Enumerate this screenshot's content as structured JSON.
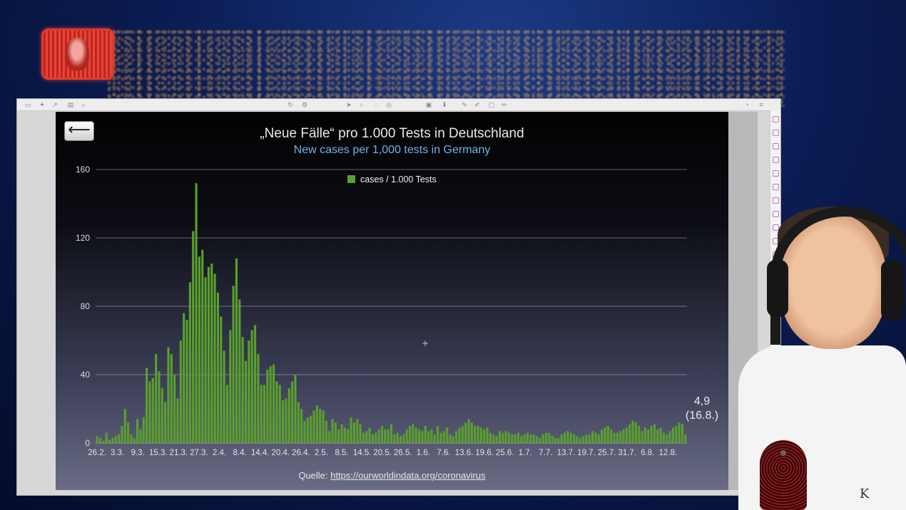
{
  "chart_data": {
    "type": "bar",
    "title": "„Neue Fälle“ pro 1.000 Tests in Deutschland",
    "subtitle": "New cases per 1,000 tests in Germany",
    "legend": [
      "cases / 1.000 Tests"
    ],
    "legend_position": "top-center",
    "xlabel": "",
    "ylabel": "",
    "ylim": [
      0,
      160
    ],
    "yticks": [
      0,
      40,
      80,
      120,
      160
    ],
    "grid": true,
    "color": "#5aa02c",
    "xtick_labels": [
      "26.2.",
      "3.3.",
      "9.3.",
      "15.3.",
      "21.3.",
      "27.3.",
      "2.4.",
      "8.4.",
      "14.4.",
      "20.4.",
      "26.4.",
      "2.5.",
      "8.5.",
      "14.5.",
      "20.5.",
      "26.5.",
      "1.6.",
      "7.6.",
      "13.6.",
      "19.6.",
      "25.6.",
      "1.7.",
      "7.7.",
      "13.7.",
      "19.7.",
      "25.7.",
      "31.7.",
      "6.8.",
      "12.8."
    ],
    "values": [
      4,
      3,
      1,
      6,
      2,
      3,
      4,
      5,
      10,
      20,
      12,
      5,
      3,
      14,
      8,
      15,
      44,
      36,
      38,
      52,
      42,
      32,
      24,
      56,
      52,
      40,
      26,
      60,
      76,
      72,
      94,
      124,
      152,
      109,
      113,
      97,
      103,
      105,
      99,
      88,
      74,
      54,
      34,
      66,
      92,
      108,
      84,
      62,
      48,
      60,
      66,
      69,
      52,
      34,
      34,
      43,
      45,
      46,
      36,
      34,
      25,
      26,
      32,
      36,
      40,
      24,
      20,
      13,
      15,
      16,
      19,
      22,
      20,
      19,
      13,
      7,
      14,
      12,
      8,
      11,
      9,
      8,
      15,
      12,
      14,
      11,
      6,
      7,
      9,
      5,
      6,
      8,
      10,
      8,
      8,
      11,
      5,
      6,
      4,
      5,
      8,
      10,
      11,
      9,
      8,
      7,
      10,
      7,
      8,
      5,
      10,
      6,
      7,
      9,
      5,
      4,
      7,
      9,
      10,
      12,
      14,
      12,
      10,
      10,
      9,
      8,
      9,
      6,
      5,
      4,
      7,
      6,
      7,
      6,
      5,
      5,
      6,
      4,
      5,
      6,
      5,
      5,
      4,
      3,
      5,
      6,
      6,
      4,
      3,
      3,
      5,
      6,
      7,
      6,
      5,
      4,
      3,
      4,
      5,
      5,
      7,
      6,
      5,
      8,
      9,
      10,
      8,
      6,
      6,
      7,
      8,
      9,
      11,
      13,
      12,
      10,
      7,
      9,
      8,
      10,
      11,
      8,
      9,
      6,
      5,
      7,
      9,
      10,
      12,
      11,
      5
    ],
    "end_annotation": {
      "value": "4,9",
      "date": "(16.8.)"
    }
  },
  "source": {
    "prefix": "Quelle: ",
    "link": "https://ourworldindata.org/coronavirus"
  },
  "back_button_glyph": "⟵",
  "crosshair_glyph": "+"
}
